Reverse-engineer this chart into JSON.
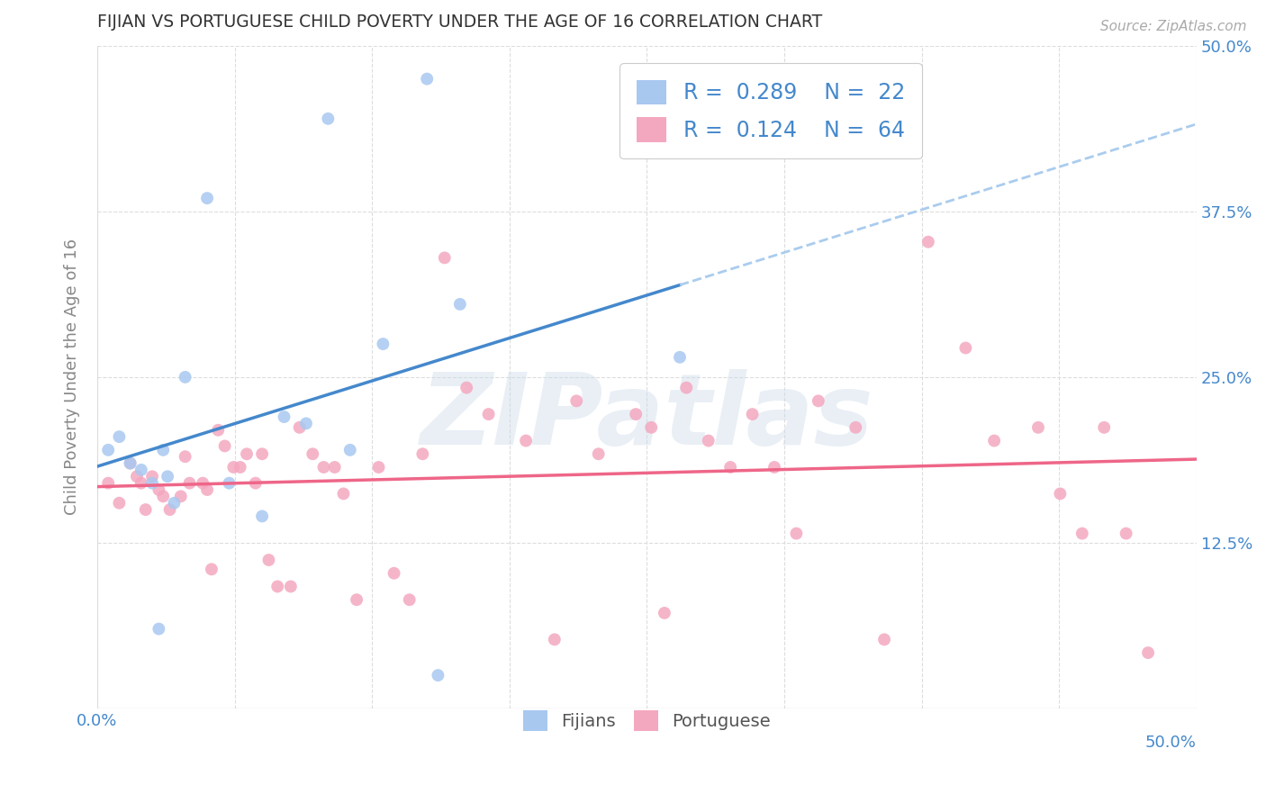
{
  "title": "FIJIAN VS PORTUGUESE CHILD POVERTY UNDER THE AGE OF 16 CORRELATION CHART",
  "source": "Source: ZipAtlas.com",
  "ylabel": "Child Poverty Under the Age of 16",
  "xlim": [
    0.0,
    0.5
  ],
  "ylim": [
    0.0,
    0.5
  ],
  "xticks": [
    0.0,
    0.0625,
    0.125,
    0.1875,
    0.25,
    0.3125,
    0.375,
    0.4375,
    0.5
  ],
  "yticks": [
    0.0,
    0.125,
    0.25,
    0.375,
    0.5
  ],
  "xticklabels_left": [
    "0.0%",
    "",
    "",
    "",
    "",
    "",
    "",
    "",
    ""
  ],
  "xticklabels_right": [
    "",
    "",
    "",
    "",
    "",
    "",
    "",
    "",
    "50.0%"
  ],
  "yticklabels_right": [
    "",
    "12.5%",
    "25.0%",
    "37.5%",
    "50.0%"
  ],
  "fijian_color": "#A8C8F0",
  "portuguese_color": "#F4A8C0",
  "fijian_line_color": "#4488CC",
  "portuguese_line_color": "#EE6688",
  "dashed_line_color": "#AACCEE",
  "legend_text_color": "#4488CC",
  "title_color": "#333333",
  "R_fijian": 0.289,
  "N_fijian": 22,
  "R_portuguese": 0.124,
  "N_portuguese": 64,
  "fijian_x": [
    0.005,
    0.01,
    0.015,
    0.02,
    0.025,
    0.028,
    0.03,
    0.032,
    0.035,
    0.04,
    0.05,
    0.06,
    0.075,
    0.085,
    0.095,
    0.105,
    0.115,
    0.13,
    0.15,
    0.165,
    0.265,
    0.155
  ],
  "fijian_y": [
    0.195,
    0.205,
    0.185,
    0.18,
    0.17,
    0.06,
    0.195,
    0.175,
    0.155,
    0.25,
    0.385,
    0.17,
    0.145,
    0.22,
    0.215,
    0.445,
    0.195,
    0.275,
    0.475,
    0.305,
    0.265,
    0.025
  ],
  "portuguese_x": [
    0.005,
    0.01,
    0.015,
    0.018,
    0.02,
    0.022,
    0.025,
    0.028,
    0.03,
    0.033,
    0.038,
    0.04,
    0.042,
    0.048,
    0.05,
    0.052,
    0.055,
    0.058,
    0.062,
    0.065,
    0.068,
    0.072,
    0.075,
    0.078,
    0.082,
    0.088,
    0.092,
    0.098,
    0.103,
    0.108,
    0.112,
    0.118,
    0.128,
    0.135,
    0.142,
    0.148,
    0.158,
    0.168,
    0.178,
    0.195,
    0.208,
    0.218,
    0.228,
    0.245,
    0.252,
    0.258,
    0.268,
    0.278,
    0.288,
    0.298,
    0.308,
    0.318,
    0.328,
    0.345,
    0.358,
    0.378,
    0.395,
    0.408,
    0.428,
    0.438,
    0.448,
    0.458,
    0.468,
    0.478
  ],
  "portuguese_y": [
    0.17,
    0.155,
    0.185,
    0.175,
    0.17,
    0.15,
    0.175,
    0.165,
    0.16,
    0.15,
    0.16,
    0.19,
    0.17,
    0.17,
    0.165,
    0.105,
    0.21,
    0.198,
    0.182,
    0.182,
    0.192,
    0.17,
    0.192,
    0.112,
    0.092,
    0.092,
    0.212,
    0.192,
    0.182,
    0.182,
    0.162,
    0.082,
    0.182,
    0.102,
    0.082,
    0.192,
    0.34,
    0.242,
    0.222,
    0.202,
    0.052,
    0.232,
    0.192,
    0.222,
    0.212,
    0.072,
    0.242,
    0.202,
    0.182,
    0.222,
    0.182,
    0.132,
    0.232,
    0.212,
    0.052,
    0.352,
    0.272,
    0.202,
    0.212,
    0.162,
    0.132,
    0.212,
    0.132,
    0.042
  ],
  "background_color": "#FFFFFF",
  "grid_color": "#DDDDDD",
  "marker_size": 100,
  "watermark": "ZIPatlas",
  "watermark_color": "#C8D8E8",
  "watermark_alpha": 0.4
}
